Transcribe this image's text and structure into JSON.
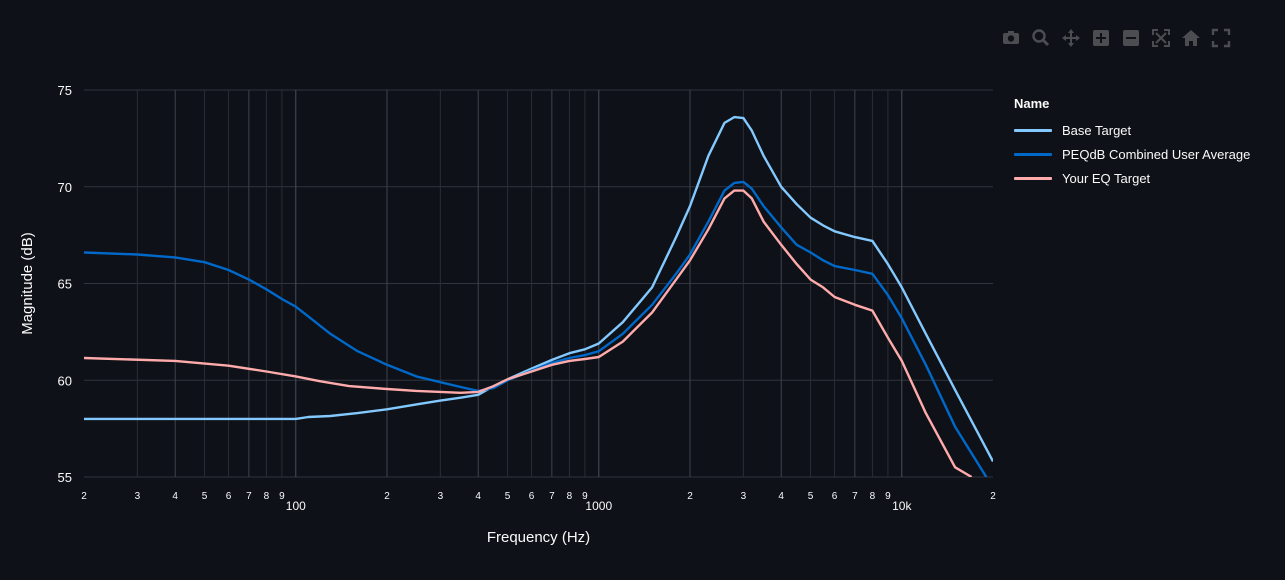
{
  "modebar": {
    "buttons": [
      {
        "icon": "camera-icon",
        "name": "download-plot-button"
      },
      {
        "icon": "zoom-icon",
        "name": "zoom-button"
      },
      {
        "icon": "pan-icon",
        "name": "pan-button"
      },
      {
        "icon": "zoom-in-icon",
        "name": "zoom-in-button"
      },
      {
        "icon": "zoom-out-icon",
        "name": "zoom-out-button"
      },
      {
        "icon": "autoscale-icon",
        "name": "autoscale-button"
      },
      {
        "icon": "home-icon",
        "name": "reset-axes-button"
      },
      {
        "icon": "fullscreen-icon",
        "name": "fullscreen-button"
      }
    ]
  },
  "legend": {
    "title": "Name",
    "items": [
      {
        "label": "Base Target",
        "color": "#83c9ff"
      },
      {
        "label": "PEQdB Combined User Average",
        "color": "#0068c9"
      },
      {
        "label": "Your EQ Target",
        "color": "#ffabab"
      }
    ]
  },
  "chart_data": {
    "type": "line",
    "title": "",
    "xlabel": "Frequency (Hz)",
    "ylabel": "Magnitude (dB)",
    "x_scale": "log",
    "xlim": [
      20,
      20000
    ],
    "ylim": [
      55,
      75
    ],
    "y_ticks": [
      55,
      60,
      65,
      70,
      75
    ],
    "x_major_ticks": [
      {
        "value": 100,
        "label": "100"
      },
      {
        "value": 1000,
        "label": "1000"
      },
      {
        "value": 10000,
        "label": "10k"
      }
    ],
    "x_minor_ticks": [
      {
        "value": 20,
        "label": "2"
      },
      {
        "value": 30,
        "label": "3"
      },
      {
        "value": 40,
        "label": "4"
      },
      {
        "value": 50,
        "label": "5"
      },
      {
        "value": 60,
        "label": "6"
      },
      {
        "value": 70,
        "label": "7"
      },
      {
        "value": 80,
        "label": "8"
      },
      {
        "value": 90,
        "label": "9"
      },
      {
        "value": 200,
        "label": "2"
      },
      {
        "value": 300,
        "label": "3"
      },
      {
        "value": 400,
        "label": "4"
      },
      {
        "value": 500,
        "label": "5"
      },
      {
        "value": 600,
        "label": "6"
      },
      {
        "value": 700,
        "label": "7"
      },
      {
        "value": 800,
        "label": "8"
      },
      {
        "value": 900,
        "label": "9"
      },
      {
        "value": 2000,
        "label": "2"
      },
      {
        "value": 3000,
        "label": "3"
      },
      {
        "value": 4000,
        "label": "4"
      },
      {
        "value": 5000,
        "label": "5"
      },
      {
        "value": 6000,
        "label": "6"
      },
      {
        "value": 7000,
        "label": "7"
      },
      {
        "value": 8000,
        "label": "8"
      },
      {
        "value": 9000,
        "label": "9"
      },
      {
        "value": 20000,
        "label": "2"
      }
    ],
    "grid": true,
    "legend_position": "right",
    "series": [
      {
        "name": "Base Target",
        "color": "#83c9ff",
        "x": [
          20,
          40,
          60,
          80,
          100,
          110,
          130,
          160,
          200,
          250,
          300,
          350,
          400,
          450,
          500,
          600,
          700,
          800,
          900,
          1000,
          1200,
          1500,
          1800,
          2000,
          2300,
          2600,
          2800,
          3000,
          3200,
          3500,
          4000,
          4500,
          5000,
          5500,
          6000,
          7000,
          8000,
          9000,
          10000,
          12000,
          15000,
          20000
        ],
        "y": [
          58,
          58,
          58,
          58,
          58,
          58.1,
          58.15,
          58.3,
          58.5,
          58.75,
          58.95,
          59.1,
          59.25,
          59.7,
          60.05,
          60.6,
          61.05,
          61.4,
          61.6,
          61.9,
          63.0,
          64.8,
          67.4,
          69.0,
          71.6,
          73.3,
          73.6,
          73.55,
          72.9,
          71.6,
          70.0,
          69.1,
          68.4,
          68.0,
          67.7,
          67.4,
          67.2,
          66.0,
          64.8,
          62.4,
          59.5,
          55.8
        ]
      },
      {
        "name": "PEQdB Combined User Average",
        "color": "#0068c9",
        "x": [
          20,
          30,
          40,
          50,
          60,
          70,
          80,
          90,
          100,
          110,
          130,
          160,
          200,
          250,
          300,
          350,
          400,
          450,
          500,
          600,
          700,
          800,
          900,
          1000,
          1200,
          1500,
          1800,
          2000,
          2300,
          2600,
          2800,
          3000,
          3200,
          3500,
          4000,
          4500,
          5000,
          5500,
          6000,
          7000,
          8000,
          9000,
          10000,
          12000,
          15000,
          19000
        ],
        "y": [
          66.6,
          66.5,
          66.35,
          66.1,
          65.7,
          65.2,
          64.7,
          64.2,
          63.8,
          63.3,
          62.4,
          61.5,
          60.8,
          60.2,
          59.9,
          59.65,
          59.45,
          59.6,
          60.0,
          60.5,
          60.9,
          61.15,
          61.3,
          61.5,
          62.4,
          63.9,
          65.5,
          66.5,
          68.2,
          69.8,
          70.2,
          70.25,
          69.9,
          69.0,
          67.9,
          67.0,
          66.6,
          66.2,
          65.9,
          65.7,
          65.5,
          64.4,
          63.2,
          60.8,
          57.6,
          55
        ]
      },
      {
        "name": "Your EQ Target",
        "color": "#ffabab",
        "x": [
          20,
          40,
          60,
          80,
          100,
          120,
          150,
          200,
          250,
          300,
          350,
          400,
          450,
          500,
          600,
          700,
          800,
          900,
          1000,
          1200,
          1500,
          1800,
          2000,
          2300,
          2600,
          2800,
          3000,
          3200,
          3500,
          4000,
          4500,
          5000,
          5500,
          6000,
          7000,
          8000,
          9000,
          10000,
          12000,
          15000,
          17000
        ],
        "y": [
          61.15,
          61.0,
          60.75,
          60.45,
          60.2,
          59.95,
          59.7,
          59.55,
          59.45,
          59.4,
          59.35,
          59.4,
          59.7,
          60.05,
          60.45,
          60.8,
          61.0,
          61.1,
          61.2,
          62.0,
          63.5,
          65.2,
          66.2,
          67.8,
          69.4,
          69.8,
          69.8,
          69.4,
          68.2,
          67.0,
          66.0,
          65.2,
          64.8,
          64.3,
          63.9,
          63.6,
          62.2,
          61.0,
          58.3,
          55.5,
          55.0
        ]
      }
    ]
  }
}
